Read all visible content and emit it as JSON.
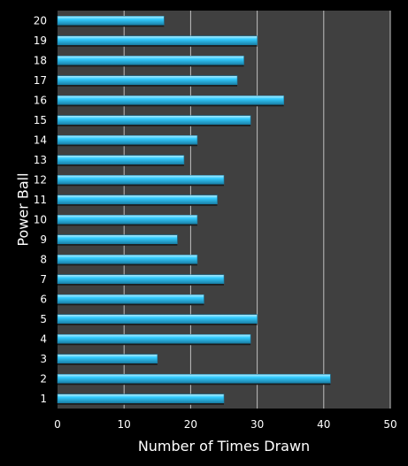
{
  "colors": {
    "page_background": "#000000",
    "plot_background": "#404040",
    "gridline": "#bfbfbf",
    "bar_fill": "#33ccff",
    "bar_highlight": "#bff0ff",
    "bar_shadow": "#1a7fa6",
    "text": "#ffffff"
  },
  "chart_data": {
    "type": "bar",
    "orientation": "horizontal",
    "title": "",
    "xlabel": "Number of Times Drawn",
    "ylabel": "Power Ball",
    "xlim": [
      0,
      50
    ],
    "xticks": [
      0,
      10,
      20,
      30,
      40,
      50
    ],
    "grid": true,
    "legend": "none",
    "categories": [
      "1",
      "2",
      "3",
      "4",
      "5",
      "6",
      "7",
      "8",
      "9",
      "10",
      "11",
      "12",
      "13",
      "14",
      "15",
      "16",
      "17",
      "18",
      "19",
      "20"
    ],
    "values": [
      25,
      41,
      15,
      29,
      30,
      22,
      25,
      21,
      18,
      21,
      24,
      25,
      19,
      21,
      29,
      34,
      27,
      28,
      30,
      16
    ]
  }
}
